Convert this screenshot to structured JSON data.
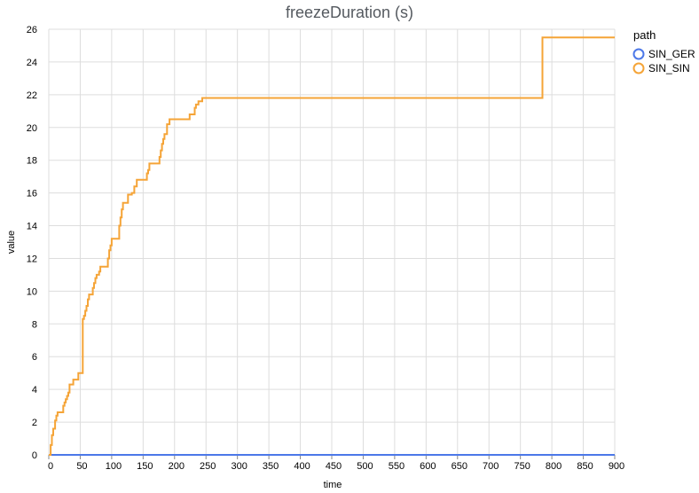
{
  "chart_data": {
    "type": "line",
    "title": "freezeDuration (s)",
    "xlabel": "time",
    "ylabel": "value",
    "xlim": [
      0,
      900
    ],
    "ylim": [
      0,
      26
    ],
    "x_ticks": [
      0,
      50,
      100,
      150,
      200,
      250,
      300,
      350,
      400,
      450,
      500,
      550,
      600,
      650,
      700,
      750,
      800,
      850,
      900
    ],
    "y_ticks": [
      0,
      2,
      4,
      6,
      8,
      10,
      12,
      14,
      16,
      18,
      20,
      22,
      24,
      26
    ],
    "grid": true,
    "legend": {
      "title": "path",
      "position": "right"
    },
    "series": [
      {
        "name": "SIN_GER",
        "color": "#4c78e8",
        "points": [
          [
            0,
            0
          ],
          [
            900,
            0
          ]
        ]
      },
      {
        "name": "SIN_SIN",
        "color": "#f5a437",
        "points": [
          [
            0,
            0
          ],
          [
            3,
            0.6
          ],
          [
            5,
            1.2
          ],
          [
            7,
            1.6
          ],
          [
            9,
            1.6
          ],
          [
            10,
            2.1
          ],
          [
            12,
            2.4
          ],
          [
            14,
            2.6
          ],
          [
            21,
            2.6
          ],
          [
            23,
            3.0
          ],
          [
            25,
            3.2
          ],
          [
            27,
            3.4
          ],
          [
            29,
            3.6
          ],
          [
            31,
            3.8
          ],
          [
            33,
            4.3
          ],
          [
            37,
            4.3
          ],
          [
            39,
            4.6
          ],
          [
            45,
            4.6
          ],
          [
            47,
            5.0
          ],
          [
            53,
            5.0
          ],
          [
            54,
            8.3
          ],
          [
            56,
            8.5
          ],
          [
            58,
            8.8
          ],
          [
            60,
            9.1
          ],
          [
            62,
            9.5
          ],
          [
            64,
            9.8
          ],
          [
            68,
            9.8
          ],
          [
            70,
            10.2
          ],
          [
            72,
            10.5
          ],
          [
            74,
            10.8
          ],
          [
            76,
            11.0
          ],
          [
            80,
            11.2
          ],
          [
            82,
            11.5
          ],
          [
            92,
            11.5
          ],
          [
            94,
            12.0
          ],
          [
            96,
            12.5
          ],
          [
            98,
            12.8
          ],
          [
            100,
            13.2
          ],
          [
            111,
            13.2
          ],
          [
            112,
            14.0
          ],
          [
            114,
            14.5
          ],
          [
            116,
            15.0
          ],
          [
            118,
            15.4
          ],
          [
            124,
            15.4
          ],
          [
            126,
            15.9
          ],
          [
            130,
            15.9
          ],
          [
            132,
            16.0
          ],
          [
            136,
            16.4
          ],
          [
            140,
            16.8
          ],
          [
            154,
            16.8
          ],
          [
            156,
            17.2
          ],
          [
            158,
            17.4
          ],
          [
            160,
            17.8
          ],
          [
            174,
            17.8
          ],
          [
            176,
            18.2
          ],
          [
            178,
            18.6
          ],
          [
            180,
            19.0
          ],
          [
            182,
            19.3
          ],
          [
            184,
            19.6
          ],
          [
            186,
            19.6
          ],
          [
            188,
            20.2
          ],
          [
            190,
            20.2
          ],
          [
            192,
            20.5
          ],
          [
            222,
            20.5
          ],
          [
            224,
            20.8
          ],
          [
            230,
            20.8
          ],
          [
            232,
            21.2
          ],
          [
            234,
            21.4
          ],
          [
            238,
            21.6
          ],
          [
            242,
            21.6
          ],
          [
            244,
            21.8
          ],
          [
            783,
            21.8
          ],
          [
            785,
            25.5
          ],
          [
            900,
            25.5
          ]
        ]
      }
    ]
  }
}
